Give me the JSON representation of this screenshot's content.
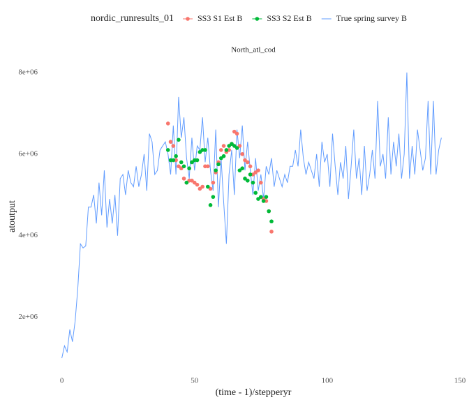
{
  "chart_data": {
    "type": "line",
    "title": "North_atl_cod",
    "legend_title": "nordic_runresults_01",
    "x_label": "(time - 1)/stepperyr",
    "y_label": "atoutput",
    "xlim": [
      -7,
      150
    ],
    "ylim": [
      950000,
      8100000
    ],
    "xticks": [
      0,
      50,
      100,
      150
    ],
    "yticks": [
      {
        "value": 2000000,
        "label": "2e+06"
      },
      {
        "value": 4000000,
        "label": "4e+06"
      },
      {
        "value": 6000000,
        "label": "6e+06"
      },
      {
        "value": 8000000,
        "label": "8e+06"
      }
    ],
    "grid": false,
    "legend": "top",
    "series": [
      {
        "name": "SS3 S1 Est B",
        "color": "#F8766D",
        "mark": "point",
        "x": [
          40,
          41,
          42,
          43,
          44,
          45,
          46,
          47,
          48,
          49,
          50,
          51,
          52,
          53,
          54,
          55,
          56,
          57,
          58,
          59,
          60,
          61,
          62,
          63,
          64,
          65,
          66,
          67,
          68,
          69,
          70,
          71,
          72,
          73,
          74,
          75,
          76,
          77,
          78,
          79
        ],
        "values": [
          6750000,
          6300000,
          6200000,
          5850000,
          5700000,
          5650000,
          5400000,
          5300000,
          5350000,
          5350000,
          5300000,
          5250000,
          5150000,
          5200000,
          5700000,
          5700000,
          5150000,
          5300000,
          5550000,
          5800000,
          6100000,
          6200000,
          6050000,
          6100000,
          6250000,
          6550000,
          6500000,
          6200000,
          6000000,
          5850000,
          5800000,
          5700000,
          5500000,
          5550000,
          5600000,
          5300000,
          4900000,
          4850000,
          4600000,
          4100000
        ]
      },
      {
        "name": "SS3 S2 Est B",
        "color": "#00BA38",
        "mark": "point",
        "x": [
          40,
          41,
          42,
          43,
          44,
          45,
          46,
          47,
          48,
          49,
          50,
          51,
          52,
          53,
          54,
          55,
          56,
          57,
          58,
          59,
          60,
          61,
          62,
          63,
          64,
          65,
          66,
          67,
          68,
          69,
          70,
          71,
          72,
          73,
          74,
          75,
          76,
          77,
          78,
          79
        ],
        "values": [
          6100000,
          5850000,
          5850000,
          5950000,
          6350000,
          5800000,
          5700000,
          5300000,
          5650000,
          5800000,
          5850000,
          5850000,
          6050000,
          6100000,
          6100000,
          5200000,
          4750000,
          4950000,
          5600000,
          5750000,
          5900000,
          5950000,
          6100000,
          6200000,
          6250000,
          6200000,
          6150000,
          5600000,
          5650000,
          5400000,
          5350000,
          5500000,
          5300000,
          5050000,
          4900000,
          4950000,
          4850000,
          4950000,
          4600000,
          4350000
        ]
      },
      {
        "name": "True spring survey B",
        "color": "#619CFF",
        "mark": "line",
        "x": [
          0,
          1,
          2,
          3,
          4,
          5,
          6,
          7,
          8,
          9,
          10,
          11,
          12,
          13,
          14,
          15,
          16,
          17,
          18,
          19,
          20,
          21,
          22,
          23,
          24,
          25,
          26,
          27,
          28,
          29,
          30,
          31,
          32,
          33,
          34,
          35,
          36,
          37,
          38,
          39,
          40,
          41,
          42,
          43,
          44,
          45,
          46,
          47,
          48,
          49,
          50,
          51,
          52,
          53,
          54,
          55,
          56,
          57,
          58,
          59,
          60,
          61,
          62,
          63,
          64,
          65,
          66,
          67,
          68,
          69,
          70,
          71,
          72,
          73,
          74,
          75,
          76,
          77,
          78,
          79,
          80,
          81,
          82,
          83,
          84,
          85,
          86,
          87,
          88,
          89,
          90,
          91,
          92,
          93,
          94,
          95,
          96,
          97,
          98,
          99,
          100,
          101,
          102,
          103,
          104,
          105,
          106,
          107,
          108,
          109,
          110,
          111,
          112,
          113,
          114,
          115,
          116,
          117,
          118,
          119,
          120,
          121,
          122,
          123,
          124,
          125,
          126,
          127,
          128,
          129,
          130,
          131,
          132,
          133,
          134,
          135,
          136,
          137,
          138,
          139,
          140,
          141,
          142,
          143
        ],
        "values": [
          1000000,
          1300000,
          1150000,
          1700000,
          1400000,
          1900000,
          2700000,
          3800000,
          3700000,
          3750000,
          4700000,
          4700000,
          5000000,
          4300000,
          5300000,
          4500000,
          5600000,
          4200000,
          4900000,
          4300000,
          5000000,
          4000000,
          5400000,
          5500000,
          5000000,
          5600000,
          5300000,
          5200000,
          5700000,
          5200000,
          5500000,
          6000000,
          5100000,
          6500000,
          6300000,
          5500000,
          5600000,
          6100000,
          6200000,
          6300000,
          6000000,
          5500000,
          6700000,
          5500000,
          7400000,
          6400000,
          6900000,
          5900000,
          5400000,
          6400000,
          5600000,
          6200000,
          6100000,
          6900000,
          5800000,
          6400000,
          5600000,
          5100000,
          6600000,
          4700000,
          5900000,
          4800000,
          3800000,
          5500000,
          6100000,
          5000000,
          6600000,
          5900000,
          6700000,
          5600000,
          6300000,
          5600000,
          5000000,
          5900000,
          5100000,
          5500000,
          4900000,
          5700000,
          5500000,
          5900000,
          5200000,
          5600000,
          5400000,
          5200000,
          5500000,
          5300000,
          5700000,
          5700000,
          6100000,
          5700000,
          6600000,
          5900000,
          5500000,
          5800000,
          5600000,
          5400000,
          6000000,
          5200000,
          6300000,
          5800000,
          6000000,
          5200000,
          6500000,
          5700000,
          5000000,
          5800000,
          5400000,
          6200000,
          4900000,
          5700000,
          6600000,
          5400000,
          5900000,
          5000000,
          6200000,
          5100000,
          5500000,
          6100000,
          5400000,
          7300000,
          5700000,
          6000000,
          5400000,
          6900000,
          5500000,
          6300000,
          5700000,
          6500000,
          5400000,
          6000000,
          8000000,
          5400000,
          6200000,
          5500000,
          6600000,
          6100000,
          5600000,
          5900000,
          7300000,
          5500000,
          7300000,
          5500000,
          6100000,
          6400000
        ]
      }
    ]
  }
}
